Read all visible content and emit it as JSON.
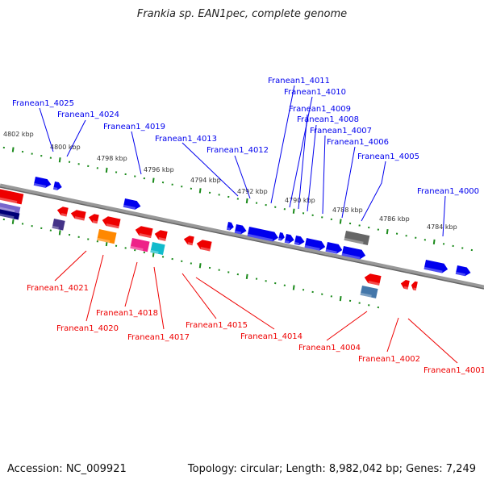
{
  "title": "Frankia sp. EAN1pec, complete genome",
  "footer": {
    "accession": "Accession: NC_009921",
    "summary": "Topology: circular; Length: 8,982,042 bp; Genes: 7,249"
  },
  "colors": {
    "forward": "#0000ee",
    "reverse": "#ee0000",
    "ticks": "#1a8a1a",
    "backbone": "#888888"
  },
  "scale_labels": [
    "4802 kbp",
    "4800 kbp",
    "4798 kbp",
    "4796 kbp",
    "4794 kbp",
    "4792 kbp",
    "4790 kbp",
    "4788 kbp",
    "4786 kbp",
    "4784 kbp"
  ],
  "forward_genes": [
    "Franean1_4025",
    "Franean1_4024",
    "Franean1_4019",
    "Franean1_4013",
    "Franean1_4012",
    "Franean1_4011",
    "Franean1_4010",
    "Franean1_4009",
    "Franean1_4008",
    "Franean1_4007",
    "Franean1_4006",
    "Franean1_4005",
    "Franean1_4000"
  ],
  "reverse_genes": [
    "Franean1_4021",
    "Franean1_4020",
    "Franean1_4018",
    "Franean1_4017",
    "Franean1_4015",
    "Franean1_4014",
    "Franean1_4004",
    "Franean1_4002",
    "Franean1_4001"
  ]
}
